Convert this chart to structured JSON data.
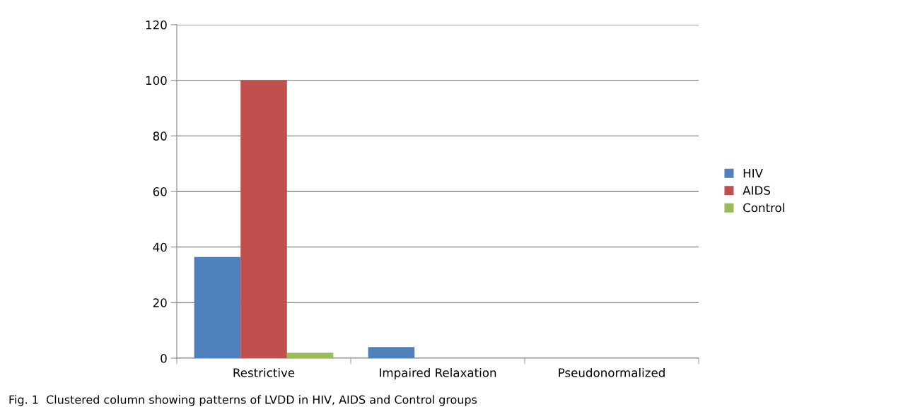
{
  "chart_data": {
    "type": "bar",
    "categories": [
      "Restrictive",
      "Impaired Relaxation",
      "Pseudonormalized"
    ],
    "series": [
      {
        "name": "HIV",
        "color": "#4f81bd",
        "values": [
          36.4,
          4,
          0
        ]
      },
      {
        "name": "AIDS",
        "color": "#c0504d",
        "values": [
          100,
          0,
          0
        ]
      },
      {
        "name": "Control",
        "color": "#9bbb59",
        "values": [
          2,
          0,
          0
        ]
      }
    ],
    "ylim": [
      0,
      120
    ],
    "yticks": [
      0,
      20,
      40,
      60,
      80,
      100,
      120
    ],
    "grid": "y",
    "legend": "right",
    "annotations": [
      "Fig. 1  Clustered column showing patterns of LVDD in HIV, AIDS and Control groups"
    ]
  }
}
